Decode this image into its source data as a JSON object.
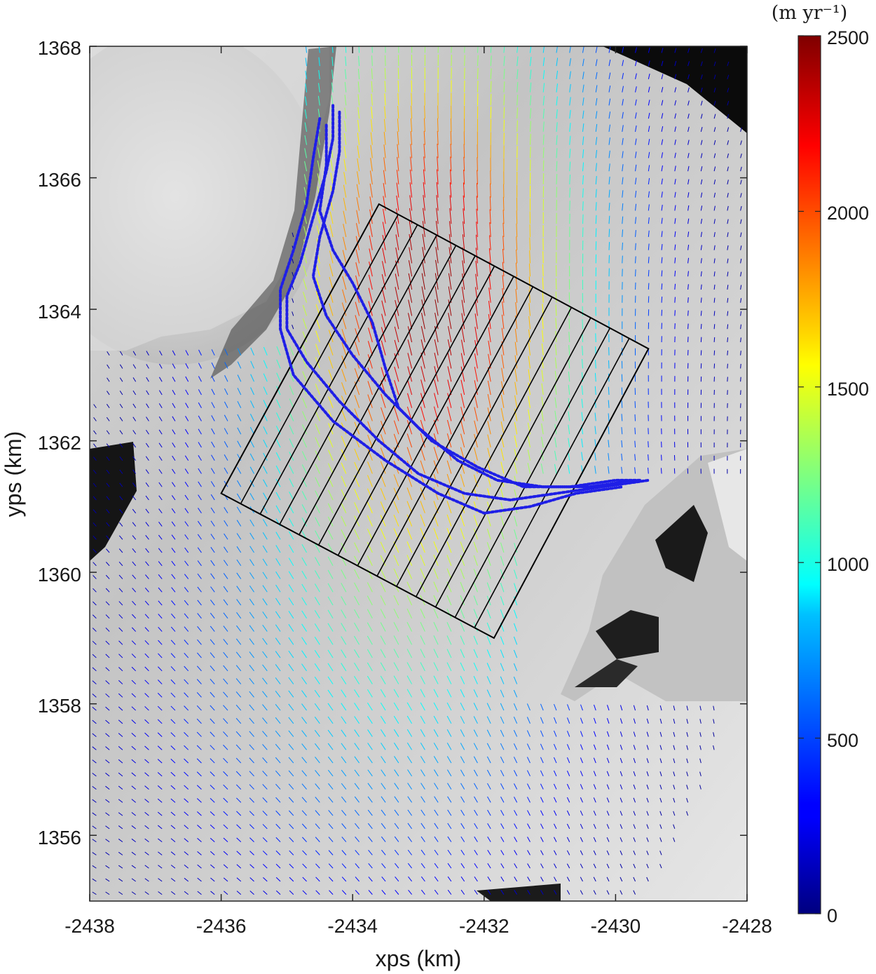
{
  "chart_data": {
    "type": "scatter",
    "title": "",
    "xlabel": "xps (km)",
    "ylabel": "yps (km)",
    "xlim": [
      -2438,
      -2428
    ],
    "ylim": [
      1355,
      1368
    ],
    "xticks": [
      -2438,
      -2436,
      -2434,
      -2432,
      -2430,
      -2428
    ],
    "yticks": [
      1356,
      1358,
      1360,
      1362,
      1364,
      1366,
      1368
    ],
    "xtick_labels": [
      "-2438",
      "-2436",
      "-2434",
      "-2432",
      "-2430",
      "-2428"
    ],
    "ytick_labels": [
      "1356",
      "1358",
      "1360",
      "1362",
      "1364",
      "1366",
      "1368"
    ],
    "grid": false,
    "background": "grayscale shaded-relief satellite image",
    "colorbar": {
      "unit": "(m yr⁻¹)",
      "range": [
        0,
        2500
      ],
      "ticks": [
        0,
        500,
        1000,
        1500,
        2000,
        2500
      ],
      "tick_labels": [
        "0",
        "500",
        "1000",
        "1500",
        "2000",
        "2500"
      ],
      "colormap": "jet"
    },
    "velocity_field_peak": {
      "x": -2432.8,
      "y": 1364.2,
      "speed": 2450
    },
    "grounding_line_traces": {
      "color": "#1f1fe6",
      "style": "dotted",
      "traces": [
        [
          [
            -2434.3,
            1367.1
          ],
          [
            -2434.3,
            1366.6
          ],
          [
            -2434.4,
            1366.1
          ],
          [
            -2434.6,
            1365.4
          ],
          [
            -2434.8,
            1364.7
          ],
          [
            -2435.0,
            1364.2
          ],
          [
            -2435.0,
            1363.7
          ],
          [
            -2434.7,
            1363.2
          ],
          [
            -2434.2,
            1362.6
          ],
          [
            -2433.6,
            1362.0
          ],
          [
            -2433.0,
            1361.5
          ],
          [
            -2432.3,
            1361.2
          ],
          [
            -2431.6,
            1361.1
          ],
          [
            -2430.9,
            1361.2
          ],
          [
            -2430.2,
            1361.3
          ],
          [
            -2429.5,
            1361.4
          ]
        ],
        [
          [
            -2434.2,
            1367.0
          ],
          [
            -2434.2,
            1366.4
          ],
          [
            -2434.3,
            1365.8
          ],
          [
            -2434.5,
            1365.1
          ],
          [
            -2434.6,
            1364.5
          ],
          [
            -2434.4,
            1363.9
          ],
          [
            -2434.0,
            1363.3
          ],
          [
            -2433.5,
            1362.7
          ],
          [
            -2433.0,
            1362.2
          ],
          [
            -2432.4,
            1361.7
          ],
          [
            -2431.8,
            1361.4
          ],
          [
            -2431.1,
            1361.3
          ],
          [
            -2430.4,
            1361.3
          ],
          [
            -2429.7,
            1361.4
          ]
        ],
        [
          [
            -2434.5,
            1366.9
          ],
          [
            -2434.6,
            1366.3
          ],
          [
            -2434.7,
            1365.6
          ],
          [
            -2434.9,
            1364.9
          ],
          [
            -2435.1,
            1364.3
          ],
          [
            -2435.1,
            1363.7
          ],
          [
            -2434.9,
            1363.0
          ],
          [
            -2434.3,
            1362.3
          ],
          [
            -2433.5,
            1361.7
          ],
          [
            -2432.7,
            1361.2
          ],
          [
            -2432.0,
            1360.9
          ],
          [
            -2431.3,
            1361.0
          ],
          [
            -2430.6,
            1361.2
          ],
          [
            -2429.9,
            1361.3
          ]
        ],
        [
          [
            -2434.4,
            1366.8
          ],
          [
            -2434.4,
            1366.2
          ],
          [
            -2434.5,
            1365.5
          ],
          [
            -2434.3,
            1364.9
          ],
          [
            -2434.0,
            1364.4
          ],
          [
            -2433.7,
            1363.8
          ],
          [
            -2433.5,
            1363.1
          ],
          [
            -2433.3,
            1362.5
          ],
          [
            -2432.8,
            1362.0
          ],
          [
            -2432.1,
            1361.6
          ],
          [
            -2431.4,
            1361.3
          ],
          [
            -2430.7,
            1361.3
          ],
          [
            -2430.0,
            1361.4
          ],
          [
            -2429.6,
            1361.4
          ]
        ]
      ]
    },
    "sampling_box": {
      "color": "#000000",
      "corners": [
        [
          -2436.0,
          1361.2
        ],
        [
          -2433.6,
          1365.6
        ],
        [
          -2429.5,
          1363.4
        ],
        [
          -2431.85,
          1359.0
        ]
      ],
      "transect_count": 14
    }
  }
}
